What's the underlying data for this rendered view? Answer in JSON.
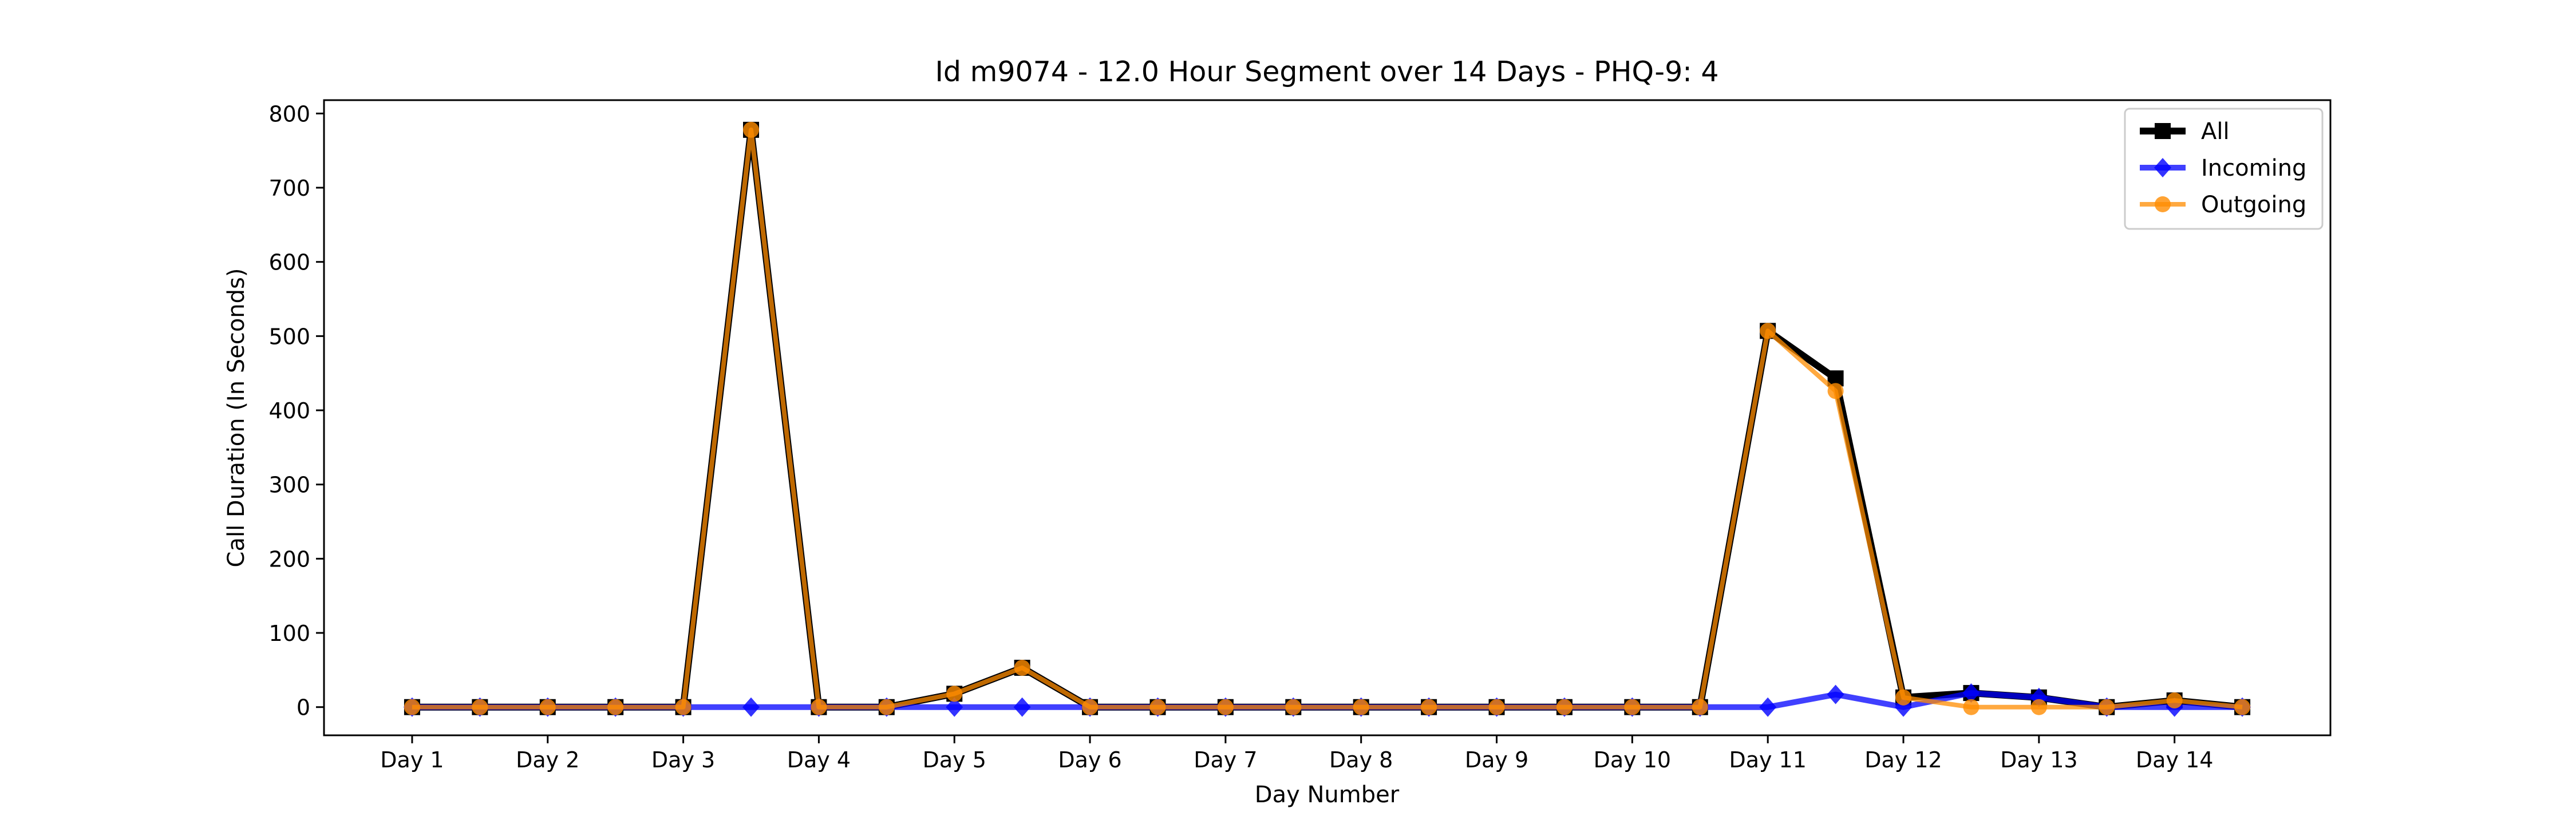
{
  "chart_data": {
    "type": "line",
    "title": "Id m9074 - 12.0 Hour Segment over 14 Days - PHQ-9: 4",
    "xlabel": "Day Number",
    "ylabel": "Call Duration (In Seconds)",
    "categories": [
      "Day 1",
      "Day 2",
      "Day 3",
      "Day 4",
      "Day 5",
      "Day 6",
      "Day 7",
      "Day 8",
      "Day 9",
      "Day 10",
      "Day 11",
      "Day 12",
      "Day 13",
      "Day 14"
    ],
    "x": [
      1,
      1.5,
      2,
      2.5,
      3,
      3.5,
      4,
      4.5,
      5,
      5.5,
      6,
      6.5,
      7,
      7.5,
      8,
      8.5,
      9,
      9.5,
      10,
      10.5,
      11,
      11.5,
      12,
      12.5,
      13,
      13.5,
      14,
      14.5
    ],
    "xlim": [
      0.35,
      15.15
    ],
    "ylim": [
      -38,
      818
    ],
    "yticks": [
      0,
      100,
      200,
      300,
      400,
      500,
      600,
      700,
      800
    ],
    "legend_position": "upper-right",
    "grid": false,
    "series": [
      {
        "name": "All",
        "color": "#000000",
        "marker": "square",
        "values": [
          0,
          0,
          0,
          0,
          0,
          778,
          0,
          0,
          18,
          53,
          0,
          0,
          0,
          0,
          0,
          0,
          0,
          0,
          0,
          0,
          507,
          443,
          13,
          19,
          13,
          0,
          9,
          0
        ]
      },
      {
        "name": "Incoming",
        "color": "#0000ff",
        "marker": "diamond",
        "values": [
          0,
          0,
          0,
          0,
          0,
          0,
          0,
          0,
          0,
          0,
          0,
          0,
          0,
          0,
          0,
          0,
          0,
          0,
          0,
          0,
          0,
          17,
          0,
          19,
          13,
          0,
          0,
          0
        ]
      },
      {
        "name": "Outgoing",
        "color": "#ff8c00",
        "marker": "circle",
        "values": [
          0,
          0,
          0,
          0,
          0,
          778,
          0,
          0,
          18,
          53,
          0,
          0,
          0,
          0,
          0,
          0,
          0,
          0,
          0,
          0,
          507,
          426,
          13,
          0,
          0,
          0,
          9,
          0
        ]
      }
    ]
  }
}
